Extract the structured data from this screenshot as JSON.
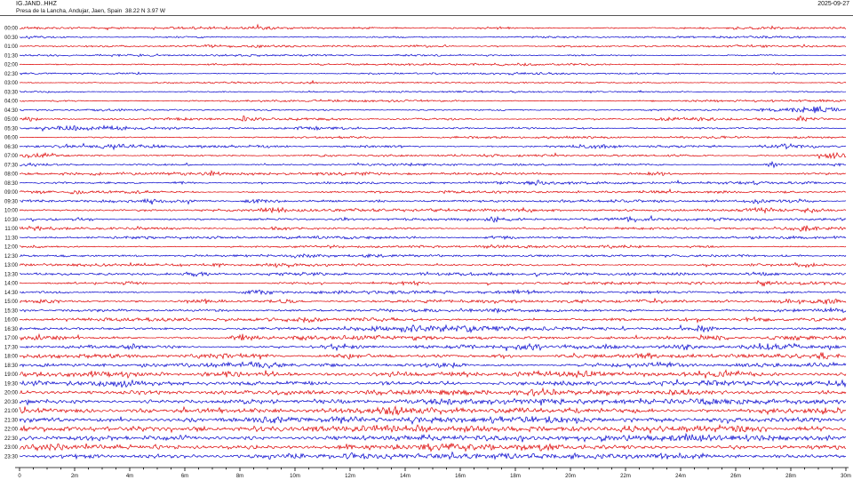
{
  "header": {
    "station": "IG.JAND..HHZ",
    "location": "Presa de la Lancha, Andujar, Jaen, Spain  38.22 N 3.97 W",
    "date": "2025-09-27"
  },
  "colors": {
    "red_trace": "#dd0000",
    "blue_trace": "#0000cc",
    "axis": "#000000",
    "text": "#111111",
    "background": "#ffffff"
  },
  "axis": {
    "unit": "minutes",
    "row_duration_min": 30,
    "major_tick_every_min": 2,
    "minor_tick_every_min": 0.5,
    "major_tick_labels": [
      "0",
      "2m",
      "4m",
      "6m",
      "8m",
      "10m",
      "12m",
      "14m",
      "16m",
      "18m",
      "20m",
      "22m",
      "24m",
      "26m",
      "28m",
      "30m"
    ]
  },
  "chart_data": {
    "type": "line",
    "title": "24-hour helicorder: 48 traces of 30 minutes each, alternating red (on the hour) and blue (half hour)",
    "x_range_min": [
      0,
      30
    ],
    "events_format": "[minute_in_row, extra_amplitude_px, sigma_minutes]",
    "rows": [
      {
        "time": "00:00",
        "color": "red",
        "noise_amp": 0.75,
        "events": [
          [
            5.8,
            0.5,
            0.3
          ],
          [
            17.5,
            0.4,
            0.3
          ]
        ]
      },
      {
        "time": "00:30",
        "color": "blue",
        "noise_amp": 0.65,
        "events": []
      },
      {
        "time": "01:00",
        "color": "red",
        "noise_amp": 0.7,
        "events": [
          [
            7.0,
            0.7,
            0.25
          ]
        ]
      },
      {
        "time": "01:30",
        "color": "blue",
        "noise_amp": 0.6,
        "events": []
      },
      {
        "time": "02:00",
        "color": "red",
        "noise_amp": 0.65,
        "events": [
          [
            12.3,
            0.4,
            0.3
          ]
        ]
      },
      {
        "time": "02:30",
        "color": "blue",
        "noise_amp": 0.6,
        "events": []
      },
      {
        "time": "03:00",
        "color": "red",
        "noise_amp": 0.55,
        "events": []
      },
      {
        "time": "03:30",
        "color": "blue",
        "noise_amp": 0.55,
        "events": []
      },
      {
        "time": "04:00",
        "color": "red",
        "noise_amp": 0.65,
        "events": []
      },
      {
        "time": "04:30",
        "color": "blue",
        "noise_amp": 0.65,
        "events": [
          [
            27.2,
            1.0,
            0.4
          ],
          [
            28.7,
            2.6,
            0.6
          ]
        ]
      },
      {
        "time": "05:00",
        "color": "red",
        "noise_amp": 0.75,
        "events": [
          [
            0.4,
            1.4,
            0.35
          ],
          [
            8.2,
            2.4,
            0.22
          ],
          [
            24.2,
            0.9,
            0.7
          ],
          [
            28.4,
            1.7,
            0.25
          ]
        ]
      },
      {
        "time": "05:30",
        "color": "blue",
        "noise_amp": 0.75,
        "events": [
          [
            1.9,
            1.5,
            0.4
          ],
          [
            3.3,
            0.9,
            0.35
          ],
          [
            10.6,
            0.7,
            0.5
          ]
        ]
      },
      {
        "time": "06:00",
        "color": "red",
        "noise_amp": 0.65,
        "events": []
      },
      {
        "time": "06:30",
        "color": "blue",
        "noise_amp": 0.75,
        "events": [
          [
            3.7,
            1.7,
            0.7
          ],
          [
            13.6,
            0.7,
            0.4
          ],
          [
            20.9,
            1.1,
            0.7
          ],
          [
            27.9,
            1.4,
            0.5
          ]
        ]
      },
      {
        "time": "07:00",
        "color": "red",
        "noise_amp": 0.75,
        "events": [
          [
            0.9,
            1.4,
            0.6
          ],
          [
            29.6,
            2.1,
            0.3
          ]
        ]
      },
      {
        "time": "07:30",
        "color": "blue",
        "noise_amp": 0.75,
        "events": [
          [
            0.2,
            1.2,
            0.3
          ],
          [
            27.4,
            1.7,
            0.2
          ]
        ]
      },
      {
        "time": "08:00",
        "color": "red",
        "noise_amp": 0.85,
        "events": [
          [
            2.8,
            1.1,
            0.15
          ],
          [
            3.8,
            1.3,
            0.2
          ],
          [
            7.0,
            1.4,
            0.2
          ],
          [
            23.2,
            1.2,
            0.3
          ]
        ]
      },
      {
        "time": "08:30",
        "color": "blue",
        "noise_amp": 0.8,
        "events": [
          [
            6.0,
            0.8,
            0.3
          ],
          [
            18.8,
            1.4,
            0.2
          ],
          [
            26.9,
            1.5,
            0.15
          ]
        ]
      },
      {
        "time": "09:00",
        "color": "red",
        "noise_amp": 0.8,
        "events": [
          [
            2.4,
            0.7,
            0.4
          ],
          [
            4.7,
            0.8,
            0.3
          ]
        ]
      },
      {
        "time": "09:30",
        "color": "blue",
        "noise_amp": 0.85,
        "events": [
          [
            4.9,
            0.9,
            0.3
          ],
          [
            8.8,
            1.1,
            0.4
          ],
          [
            13.0,
            0.9,
            0.3
          ],
          [
            26.9,
            1.5,
            0.25
          ],
          [
            28.3,
            1.1,
            0.3
          ]
        ]
      },
      {
        "time": "10:00",
        "color": "red",
        "noise_amp": 0.85,
        "events": [
          [
            9.1,
            1.1,
            0.4
          ],
          [
            18.3,
            1.4,
            0.25
          ],
          [
            26.9,
            1.2,
            0.4
          ],
          [
            28.7,
            1.3,
            0.3
          ]
        ]
      },
      {
        "time": "10:30",
        "color": "blue",
        "noise_amp": 0.85,
        "events": [
          [
            2.4,
            1.2,
            0.4
          ],
          [
            11.8,
            0.9,
            0.25
          ],
          [
            17.2,
            1.5,
            0.15
          ],
          [
            22.3,
            0.9,
            0.3
          ]
        ]
      },
      {
        "time": "11:00",
        "color": "red",
        "noise_amp": 0.85,
        "events": [
          [
            0.4,
            1.1,
            0.3
          ],
          [
            9.4,
            0.9,
            0.3
          ],
          [
            28.5,
            1.4,
            0.3
          ]
        ]
      },
      {
        "time": "11:30",
        "color": "blue",
        "noise_amp": 0.85,
        "events": [
          [
            17.5,
            1.1,
            0.4
          ]
        ]
      },
      {
        "time": "12:00",
        "color": "red",
        "noise_amp": 0.8,
        "events": [
          [
            17.2,
            0.9,
            0.3
          ]
        ]
      },
      {
        "time": "12:30",
        "color": "blue",
        "noise_amp": 0.8,
        "events": [
          [
            10.3,
            0.7,
            0.3
          ]
        ]
      },
      {
        "time": "13:00",
        "color": "red",
        "noise_amp": 0.9,
        "events": [
          [
            28.4,
            1.7,
            0.3
          ]
        ]
      },
      {
        "time": "13:30",
        "color": "blue",
        "noise_amp": 0.9,
        "events": [
          [
            6.4,
            1.5,
            0.3
          ],
          [
            26.9,
            1.3,
            0.4
          ]
        ]
      },
      {
        "time": "14:00",
        "color": "red",
        "noise_amp": 0.9,
        "events": [
          [
            4.1,
            1.3,
            0.3
          ],
          [
            14.3,
            1.0,
            0.3
          ],
          [
            27.1,
            1.4,
            0.4
          ]
        ]
      },
      {
        "time": "14:30",
        "color": "blue",
        "noise_amp": 0.95,
        "events": [
          [
            8.6,
            1.4,
            0.4
          ],
          [
            18.1,
            1.1,
            0.4
          ]
        ]
      },
      {
        "time": "15:00",
        "color": "red",
        "noise_amp": 1.0,
        "events": [
          [
            6.6,
            1.2,
            0.5
          ],
          [
            9.6,
            1.3,
            0.4
          ],
          [
            28.1,
            1.1,
            0.5
          ],
          [
            29.5,
            1.5,
            0.4
          ]
        ]
      },
      {
        "time": "15:30",
        "color": "blue",
        "noise_amp": 1.0,
        "events": [
          [
            22.1,
            1.1,
            0.3
          ],
          [
            29.4,
            1.2,
            0.4
          ]
        ]
      },
      {
        "time": "16:00",
        "color": "red",
        "noise_amp": 1.05,
        "events": [
          [
            10.6,
            0.9,
            0.4
          ],
          [
            24.1,
            1.2,
            0.6
          ],
          [
            26.6,
            1.3,
            0.4
          ]
        ]
      },
      {
        "time": "16:30",
        "color": "blue",
        "noise_amp": 1.15,
        "events": [
          [
            14.1,
            1.5,
            1.2
          ],
          [
            16.6,
            1.2,
            0.8
          ],
          [
            24.9,
            2.1,
            0.3
          ]
        ]
      },
      {
        "time": "17:00",
        "color": "red",
        "noise_amp": 1.25,
        "events": [
          [
            0.6,
            1.4,
            0.5
          ],
          [
            8.1,
            1.9,
            0.3
          ],
          [
            25.1,
            2.3,
            0.3
          ],
          [
            28.1,
            1.5,
            0.4
          ]
        ]
      },
      {
        "time": "17:30",
        "color": "blue",
        "noise_amp": 1.25,
        "events": [
          [
            4.1,
            1.3,
            0.3
          ],
          [
            11.6,
            1.9,
            0.3
          ],
          [
            16.1,
            1.5,
            0.4
          ],
          [
            18.6,
            1.7,
            0.3
          ],
          [
            24.1,
            1.4,
            0.3
          ],
          [
            27.6,
            1.5,
            0.3
          ],
          [
            29.5,
            1.4,
            0.3
          ]
        ]
      },
      {
        "time": "18:00",
        "color": "red",
        "noise_amp": 1.25,
        "events": [
          [
            12.1,
            1.4,
            0.4
          ],
          [
            17.6,
            1.3,
            0.4
          ],
          [
            22.6,
            1.4,
            0.3
          ],
          [
            29.1,
            1.3,
            0.3
          ]
        ]
      },
      {
        "time": "18:30",
        "color": "blue",
        "noise_amp": 1.25,
        "events": [
          [
            8.6,
            1.2,
            0.5
          ],
          [
            15.6,
            1.5,
            0.4
          ],
          [
            23.1,
            1.1,
            0.5
          ]
        ]
      },
      {
        "time": "19:00",
        "color": "red",
        "noise_amp": 1.5,
        "events": [
          [
            7.6,
            1.1,
            0.4
          ],
          [
            25.6,
            1.7,
            0.8
          ]
        ]
      },
      {
        "time": "19:30",
        "color": "blue",
        "noise_amp": 1.45,
        "events": [
          [
            3.6,
            1.1,
            0.6
          ],
          [
            10.6,
            0.9,
            0.5
          ]
        ]
      },
      {
        "time": "20:00",
        "color": "red",
        "noise_amp": 1.55,
        "events": []
      },
      {
        "time": "20:30",
        "color": "blue",
        "noise_amp": 1.65,
        "events": []
      },
      {
        "time": "21:00",
        "color": "red",
        "noise_amp": 1.75,
        "events": []
      },
      {
        "time": "21:30",
        "color": "blue",
        "noise_amp": 1.75,
        "events": []
      },
      {
        "time": "22:00",
        "color": "red",
        "noise_amp": 1.85,
        "events": [
          [
            25.6,
            1.1,
            0.8
          ]
        ]
      },
      {
        "time": "22:30",
        "color": "blue",
        "noise_amp": 1.8,
        "events": []
      },
      {
        "time": "23:00",
        "color": "red",
        "noise_amp": 1.75,
        "events": []
      },
      {
        "time": "23:30",
        "color": "blue",
        "noise_amp": 1.7,
        "events": [
          [
            12.1,
            0.9,
            0.4
          ]
        ]
      }
    ]
  }
}
